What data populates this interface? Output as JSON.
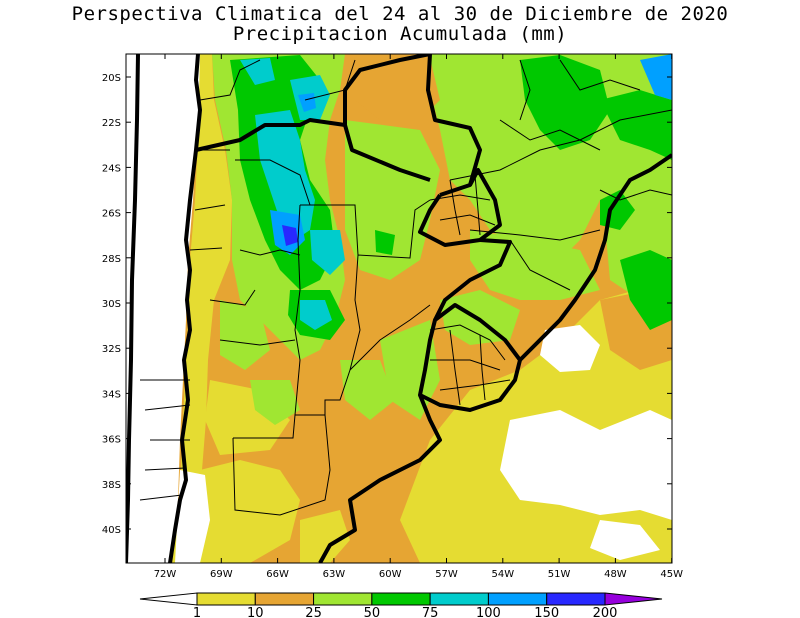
{
  "title": {
    "line1": "Perspectiva Climatica del 24 al 30 de Diciembre de 2020",
    "line2": "Precipitacion Acumulada (mm)"
  },
  "map": {
    "lon_range": [
      -74,
      -45
    ],
    "lat_range": [
      -41.5,
      -19
    ],
    "lat_ticks": [
      "20S",
      "22S",
      "24S",
      "26S",
      "28S",
      "30S",
      "32S",
      "34S",
      "36S",
      "38S",
      "40S"
    ],
    "lon_ticks": [
      "72W",
      "69W",
      "66W",
      "63W",
      "60W",
      "57W",
      "54W",
      "51W",
      "48W",
      "45W"
    ]
  },
  "colorbar": {
    "labels": [
      "1",
      "10",
      "25",
      "50",
      "75",
      "100",
      "150",
      "200"
    ],
    "colors": [
      "#ffffff",
      "#e5dc32",
      "#e6a533",
      "#a0e632",
      "#00c800",
      "#00cccc",
      "#00a0ff",
      "#2828ff",
      "#9600dc"
    ]
  },
  "palette": {
    "land_white": "#ffffff",
    "level_1_10": "#e5dc32",
    "level_10_25": "#e6a533",
    "level_25_50": "#a0e632",
    "level_50_75": "#00c800",
    "level_75_100": "#00cccc",
    "level_100_150": "#00a0ff",
    "level_150_200": "#2828ff"
  }
}
